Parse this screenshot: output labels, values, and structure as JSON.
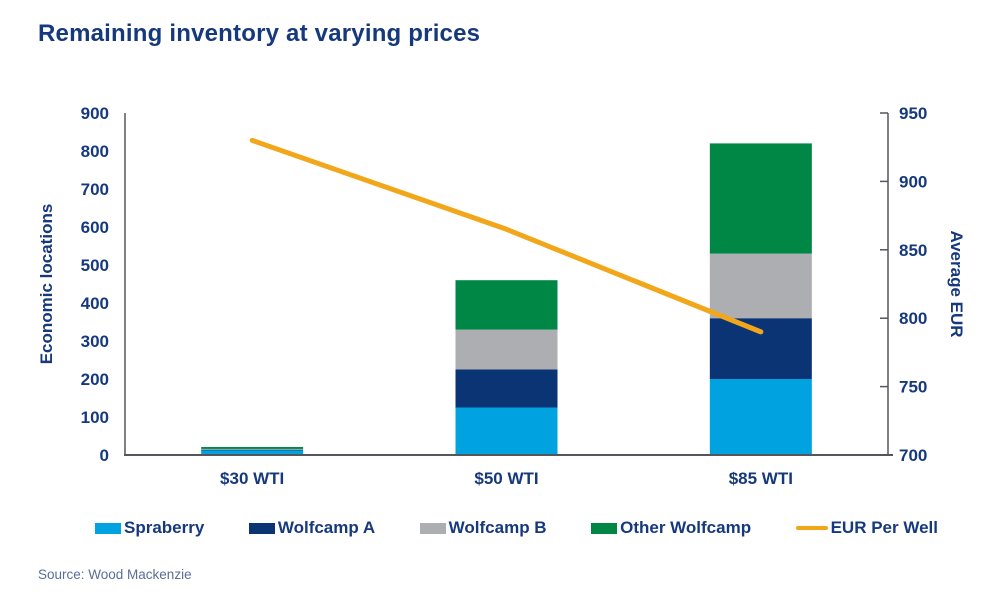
{
  "chart_data": {
    "type": "bar",
    "subtype": "stacked-bar-with-line-overlay",
    "title": "Remaining inventory at varying prices",
    "categories": [
      "$30 WTI",
      "$50 WTI",
      "$85 WTI"
    ],
    "series": [
      {
        "name": "Spraberry",
        "type": "bar",
        "axis": "left",
        "color": "#00A3E0",
        "values": [
          12,
          125,
          200
        ]
      },
      {
        "name": "Wolfcamp A",
        "type": "bar",
        "axis": "left",
        "color": "#0B3474",
        "values": [
          2,
          100,
          160
        ]
      },
      {
        "name": "Wolfcamp B",
        "type": "bar",
        "axis": "left",
        "color": "#ACAEB1",
        "values": [
          2,
          105,
          170
        ]
      },
      {
        "name": "Other Wolfcamp",
        "type": "bar",
        "axis": "left",
        "color": "#008745",
        "values": [
          5,
          130,
          290
        ]
      },
      {
        "name": "EUR Per Well",
        "type": "line",
        "axis": "right",
        "color": "#F2A71B",
        "values": [
          930,
          865,
          790
        ]
      }
    ],
    "left_axis": {
      "label": "Economic locations",
      "min": 0,
      "max": 900,
      "step": 100
    },
    "right_axis": {
      "label": "Average EUR",
      "min": 700,
      "max": 950,
      "step": 50
    },
    "grid": false,
    "legend_position": "bottom"
  },
  "footer": {
    "source": "Source: Wood Mackenzie"
  },
  "colors": {
    "title_text": "#16397E",
    "axis_text": "#16397E",
    "axis_line": "#53565A",
    "source_text": "#5B6E96",
    "background": "#FFFFFF"
  }
}
